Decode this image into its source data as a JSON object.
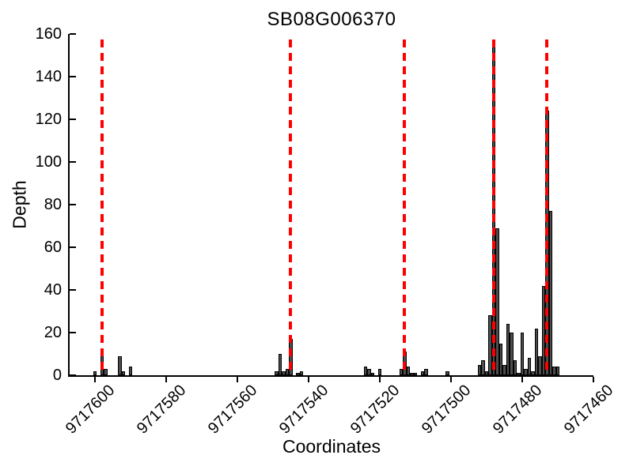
{
  "figure": {
    "background": "#ffffff"
  },
  "chart_data": {
    "type": "bar",
    "title": "SB08G006370",
    "xlabel": "Coordinates",
    "ylabel": "Depth",
    "x_axis_reversed": true,
    "xlim": [
      9717607.1,
      9717460
    ],
    "ylim": [
      0,
      160
    ],
    "x_ticks": [
      9717600,
      9717580,
      9717560,
      9717540,
      9717520,
      9717500,
      9717480,
      9717460
    ],
    "y_ticks": [
      0,
      20,
      40,
      60,
      80,
      100,
      120,
      140,
      160
    ],
    "grid": false,
    "legend": null,
    "bar_width_units": 1,
    "bar_fill_color": "#4d4d4d",
    "bar_edge_color": "#000000",
    "marker_line_color": "#ff0000",
    "marker_line_style": "dashed",
    "marker_line_top": 157.5,
    "marker_lines_x": [
      9717598,
      9717545,
      9717513,
      9717488,
      9717473
    ],
    "bars": [
      [
        9717600,
        2
      ],
      [
        9717598,
        11
      ],
      [
        9717597,
        3
      ],
      [
        9717593,
        9
      ],
      [
        9717592,
        2
      ],
      [
        9717590,
        4
      ],
      [
        9717549,
        2
      ],
      [
        9717548,
        10
      ],
      [
        9717547,
        2
      ],
      [
        9717546,
        3
      ],
      [
        9717545,
        17
      ],
      [
        9717543,
        1
      ],
      [
        9717542,
        2
      ],
      [
        9717524,
        4
      ],
      [
        9717523,
        3
      ],
      [
        9717522,
        1
      ],
      [
        9717520,
        3
      ],
      [
        9717514,
        3
      ],
      [
        9717513,
        11
      ],
      [
        9717512,
        4
      ],
      [
        9717511,
        1
      ],
      [
        9717510,
        1
      ],
      [
        9717508,
        2
      ],
      [
        9717507,
        3
      ],
      [
        9717501,
        2
      ],
      [
        9717492,
        5
      ],
      [
        9717491,
        7
      ],
      [
        9717490,
        2
      ],
      [
        9717489,
        28
      ],
      [
        9717488,
        156
      ],
      [
        9717487,
        69
      ],
      [
        9717486,
        15
      ],
      [
        9717485,
        5
      ],
      [
        9717484,
        24
      ],
      [
        9717483,
        20
      ],
      [
        9717482,
        7
      ],
      [
        9717481,
        1
      ],
      [
        9717480,
        20
      ],
      [
        9717479,
        3
      ],
      [
        9717478,
        8
      ],
      [
        9717477,
        2
      ],
      [
        9717476,
        22
      ],
      [
        9717475,
        9
      ],
      [
        9717474,
        42
      ],
      [
        9717473,
        124
      ],
      [
        9717472,
        77
      ],
      [
        9717471,
        4
      ],
      [
        9717470,
        4
      ]
    ]
  }
}
